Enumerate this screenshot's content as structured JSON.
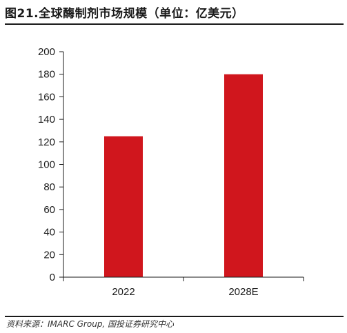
{
  "figure": {
    "title": "图21.全球酶制剂市场规模（单位：亿美元）",
    "source": "资料来源：IMARC Group, 国投证券研究中心"
  },
  "colors": {
    "bar": "#d0161d",
    "axis": "#1a1a1a"
  },
  "chart_data": {
    "type": "bar",
    "title": "全球酶制剂市场规模（单位：亿美元）",
    "categories": [
      "2022",
      "2028E"
    ],
    "values": [
      125,
      180
    ],
    "xlabel": "",
    "ylabel": "",
    "ylim": [
      0,
      200
    ],
    "yticks": [
      0,
      20,
      40,
      60,
      80,
      100,
      120,
      140,
      160,
      180,
      200
    ],
    "grid": false,
    "legend": "none"
  }
}
